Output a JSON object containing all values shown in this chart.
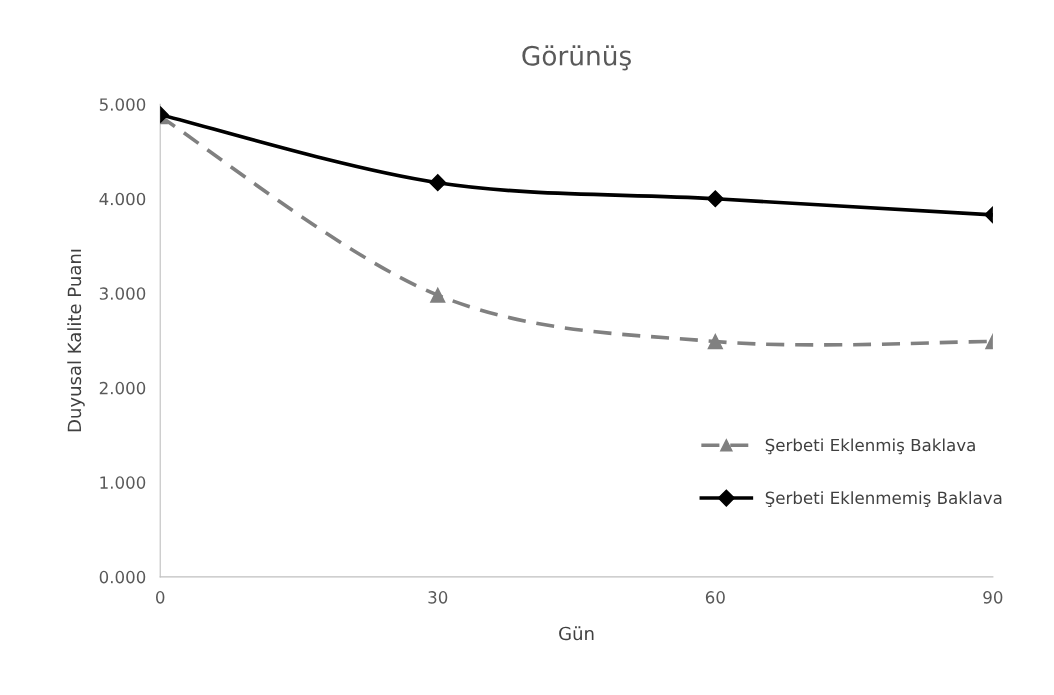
{
  "chart_data": {
    "type": "line",
    "title": "Görünüş",
    "xlabel": "Gün",
    "ylabel": "Duyusal Kalite Puanı",
    "x": [
      0,
      30,
      60,
      90
    ],
    "series": [
      {
        "name": "Şerbeti Eklenmiş Baklava",
        "color": "#808080",
        "values": [
          4.87,
          2.98,
          2.49,
          2.49
        ],
        "marker": "triangle",
        "line_style": "dashed"
      },
      {
        "name": "Şerbeti Eklenmemiş Baklava",
        "color": "#000000",
        "values": [
          4.89,
          4.17,
          4.0,
          3.83
        ],
        "marker": "diamond",
        "line_style": "solid"
      }
    ],
    "xlim": [
      0,
      90
    ],
    "xticks": [
      0,
      30,
      60,
      90
    ],
    "ylim": [
      0,
      5
    ],
    "yticks": [
      {
        "value": 0,
        "label": "0.000"
      },
      {
        "value": 1,
        "label": "1.000"
      },
      {
        "value": 2,
        "label": "2.000"
      },
      {
        "value": 3,
        "label": "3.000"
      },
      {
        "value": 4,
        "label": "4.000"
      },
      {
        "value": 5,
        "label": "5.000"
      }
    ],
    "grid": false,
    "legend": "right"
  }
}
